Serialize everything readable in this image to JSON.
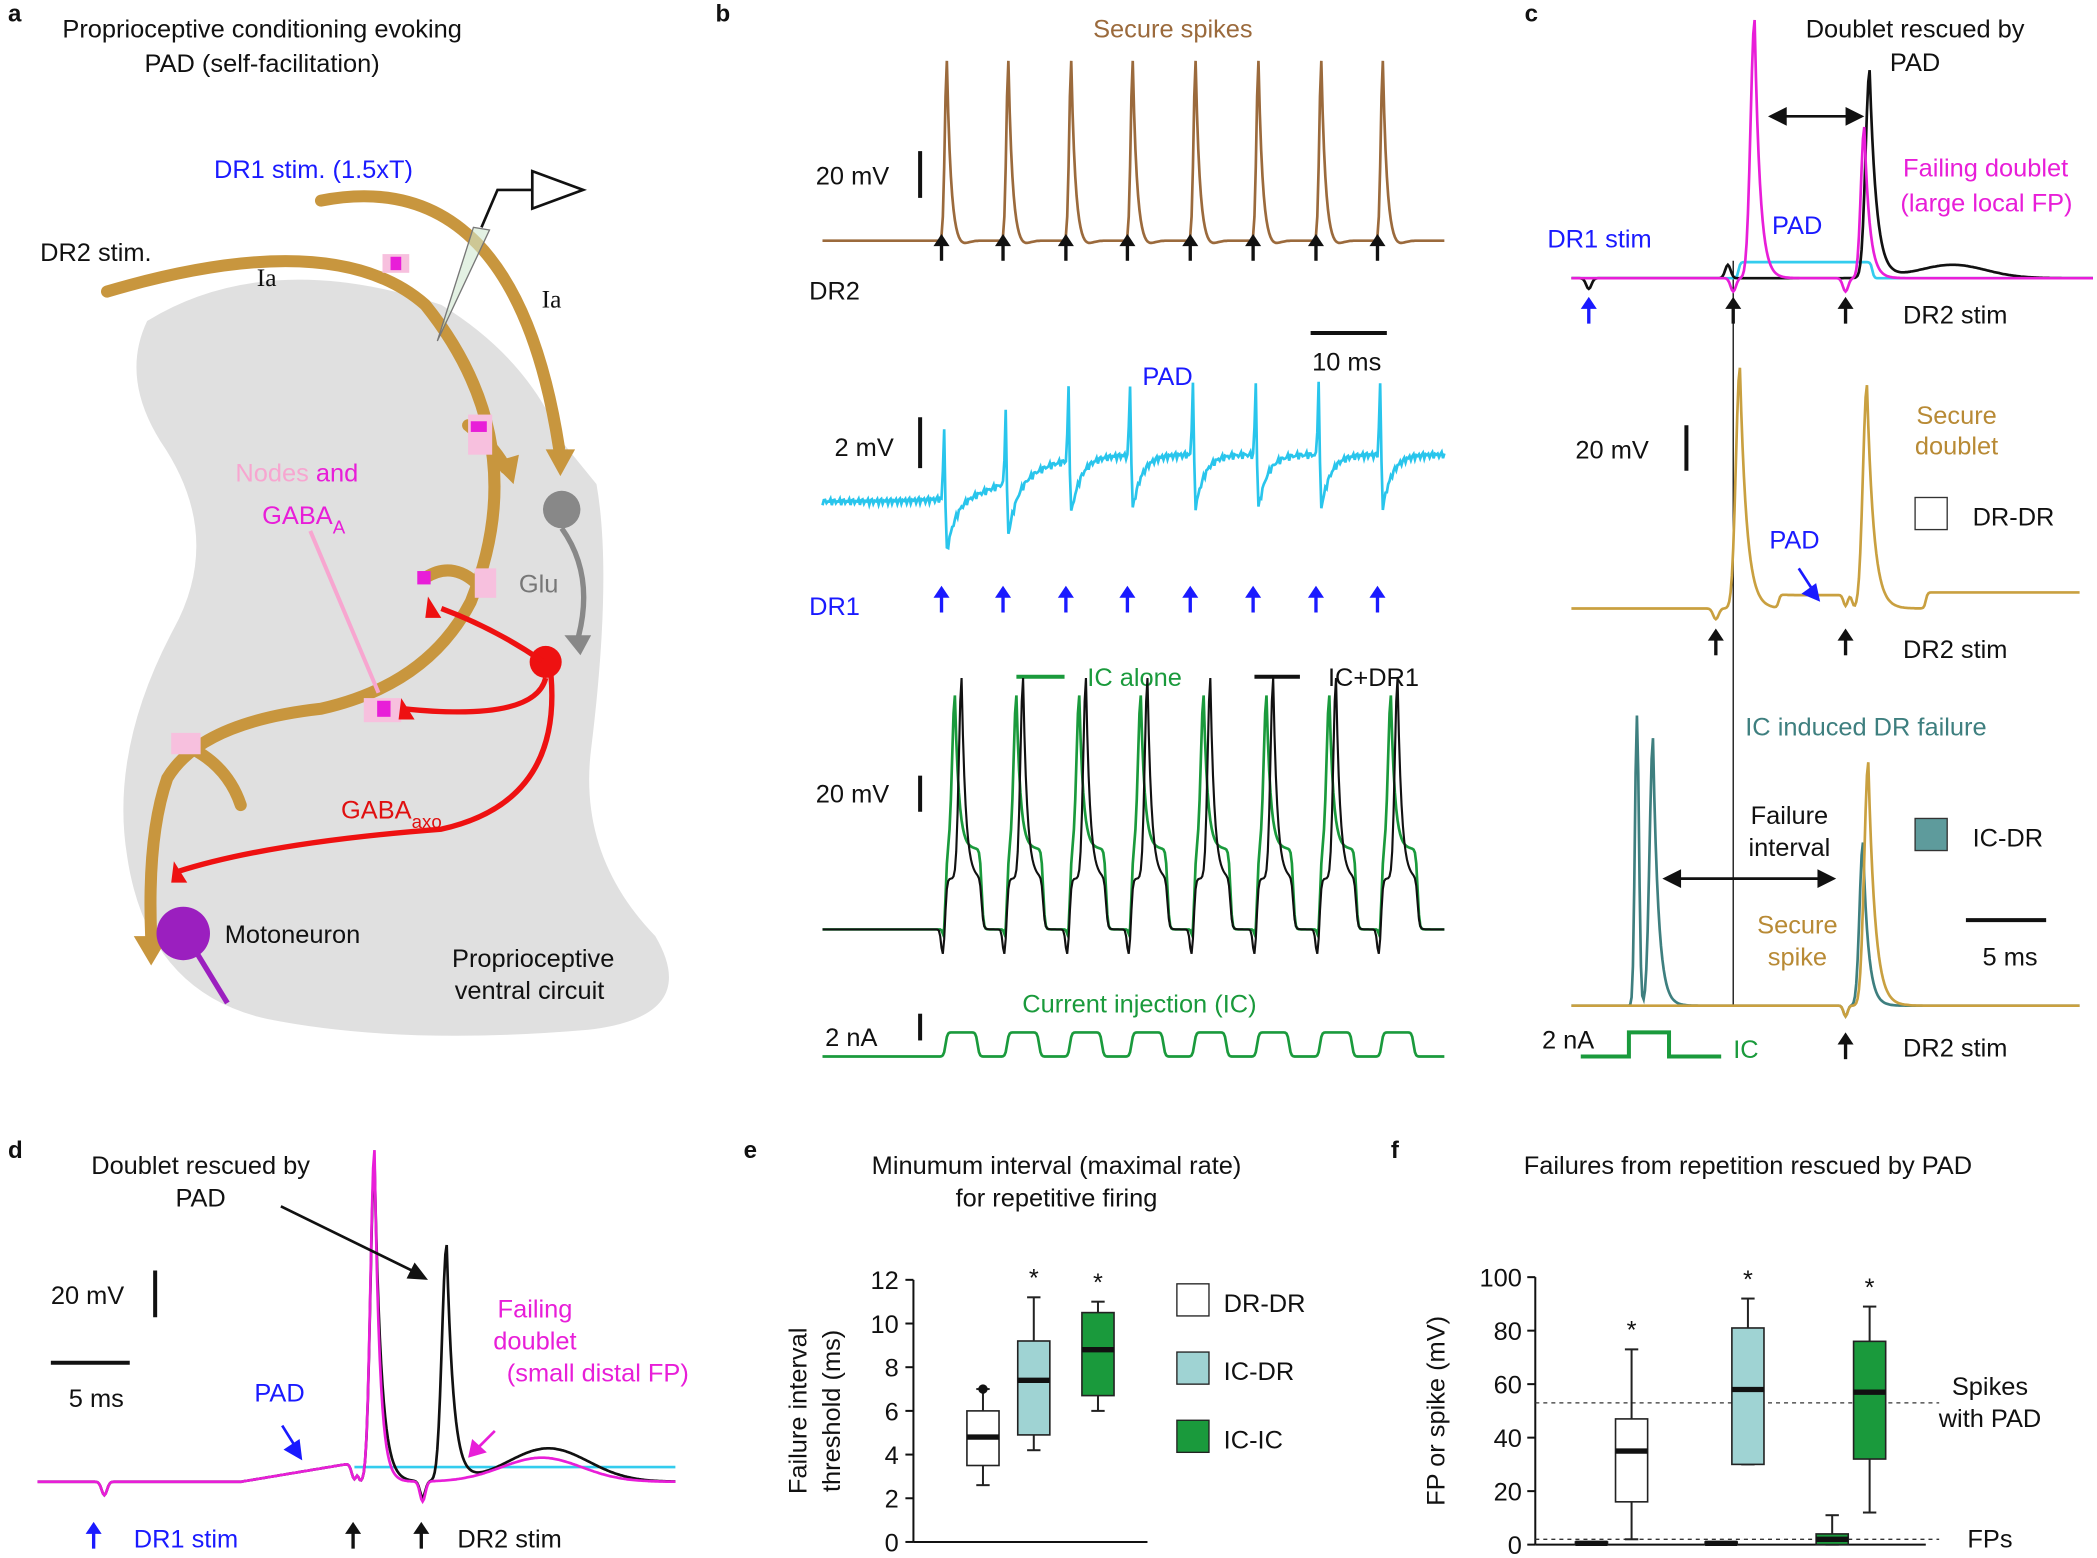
{
  "panels": {
    "a": {
      "label": "a",
      "title": [
        "Proprioceptive conditioning evoking",
        "PAD (self-facilitation)"
      ],
      "dr1_stim": "DR1 stim. (1.5xT)",
      "dr2_stim": "DR2 stim.",
      "ia": [
        "Ia",
        "Ia"
      ],
      "nodes": "Nodes",
      "and": "and",
      "gaba_a": [
        "GABA",
        "A"
      ],
      "glu": "Glu",
      "gaba_axo": [
        "GABA",
        "axo"
      ],
      "motoneuron": "Motoneuron",
      "circuit": [
        "Proprioceptive",
        "ventral circuit"
      ]
    },
    "b": {
      "label": "b",
      "secure_spikes": "Secure spikes",
      "scale_20mv_1": "20 mV",
      "dr2": "DR2",
      "scale_10ms": "10 ms",
      "pad": "PAD",
      "scale_2mv": "2 mV",
      "dr1": "DR1",
      "ic_alone": "IC alone",
      "ic_dr1": "IC+DR1",
      "scale_20mv_2": "20 mV",
      "current_injection": "Current injection (IC)",
      "scale_2na": "2 nA"
    },
    "c": {
      "label": "c",
      "title": [
        "Doublet rescued by",
        "PAD"
      ],
      "failing": [
        "Failing doublet",
        "(large local FP)"
      ],
      "pad_1": "PAD",
      "dr1_stim": "DR1 stim",
      "dr2_stim_1": "DR2 stim",
      "scale_20mv": "20 mV",
      "secure_doublet": [
        "Secure",
        "doublet"
      ],
      "dr_dr": "DR-DR",
      "pad_2": "PAD",
      "dr2_stim_2": "DR2 stim",
      "ic_failure": "IC induced DR failure",
      "failure_interval": [
        "Failure",
        "interval"
      ],
      "ic_dr": "IC-DR",
      "secure_spike": [
        "Secure",
        "spike"
      ],
      "scale_5ms": "5 ms",
      "scale_2na": "2 nA",
      "ic": "IC",
      "dr2_stim_3": "DR2 stim"
    },
    "d": {
      "label": "d",
      "title": [
        "Doublet rescued by",
        "PAD"
      ],
      "scale_20mv": "20 mV",
      "scale_5ms": "5 ms",
      "failing": [
        "Failing",
        "doublet",
        "(small distal FP)"
      ],
      "pad": "PAD",
      "dr1_stim": "DR1 stim",
      "dr2_stim": "DR2 stim"
    }
  },
  "chart_data": [
    {
      "type": "box",
      "panel_label": "e",
      "title": [
        "Minumum interval (maximal rate)",
        "for repetitive firing"
      ],
      "ylabel": [
        "Failure interval",
        "threshold (ms)"
      ],
      "ylim": [
        0,
        12
      ],
      "yticks": [
        0,
        2,
        4,
        6,
        8,
        10,
        12
      ],
      "series": [
        {
          "name": "DR-DR",
          "color": "#ffffff",
          "boxes": [
            {
              "low": 2.6,
              "q1": 3.5,
              "median": 4.8,
              "q3": 6.0,
              "high": 7.0,
              "outliers": [
                7.0
              ]
            }
          ]
        },
        {
          "name": "IC-DR",
          "color": "#9fd3d3",
          "boxes": [
            {
              "low": 4.2,
              "q1": 4.9,
              "median": 7.4,
              "q3": 9.2,
              "high": 11.2,
              "annotation": "*"
            }
          ]
        },
        {
          "name": "IC-IC",
          "color": "#1a9a3c",
          "boxes": [
            {
              "low": 6.0,
              "q1": 6.7,
              "median": 8.8,
              "q3": 10.5,
              "high": 11.0,
              "annotation": "*"
            }
          ]
        }
      ]
    },
    {
      "type": "box",
      "panel_label": "f",
      "title": "Failures from repetition rescued by PAD",
      "ylabel": "FP or spike (mV)",
      "ylim": [
        0,
        100
      ],
      "yticks": [
        0,
        20,
        40,
        60,
        80,
        100
      ],
      "series": [
        {
          "name": "DR-DR",
          "color": "#ffffff",
          "boxes": [
            {
              "low": 0,
              "q1": 0,
              "median": 0.5,
              "q3": 1,
              "high": 1
            },
            {
              "low": 2,
              "q1": 16,
              "median": 35,
              "q3": 47,
              "high": 73,
              "annotation": "*"
            }
          ]
        },
        {
          "name": "IC-DR",
          "color": "#9fd3d3",
          "boxes": [
            {
              "low": 0,
              "q1": 0,
              "median": 0.5,
              "q3": 1,
              "high": 1
            },
            {
              "low": 30,
              "q1": 30,
              "median": 58,
              "q3": 81,
              "high": 92,
              "annotation": "*"
            }
          ]
        },
        {
          "name": "IC-IC",
          "color": "#1a9a3c",
          "boxes": [
            {
              "low": 0,
              "q1": 0,
              "median": 2,
              "q3": 4,
              "high": 11
            },
            {
              "low": 12,
              "q1": 32,
              "median": 57,
              "q3": 76,
              "high": 89,
              "annotation": "*"
            }
          ]
        }
      ],
      "reference_lines": [
        {
          "value": 53,
          "label": [
            "Spikes",
            "with PAD"
          ]
        },
        {
          "value": 2,
          "label": [
            "FPs"
          ]
        }
      ]
    }
  ]
}
